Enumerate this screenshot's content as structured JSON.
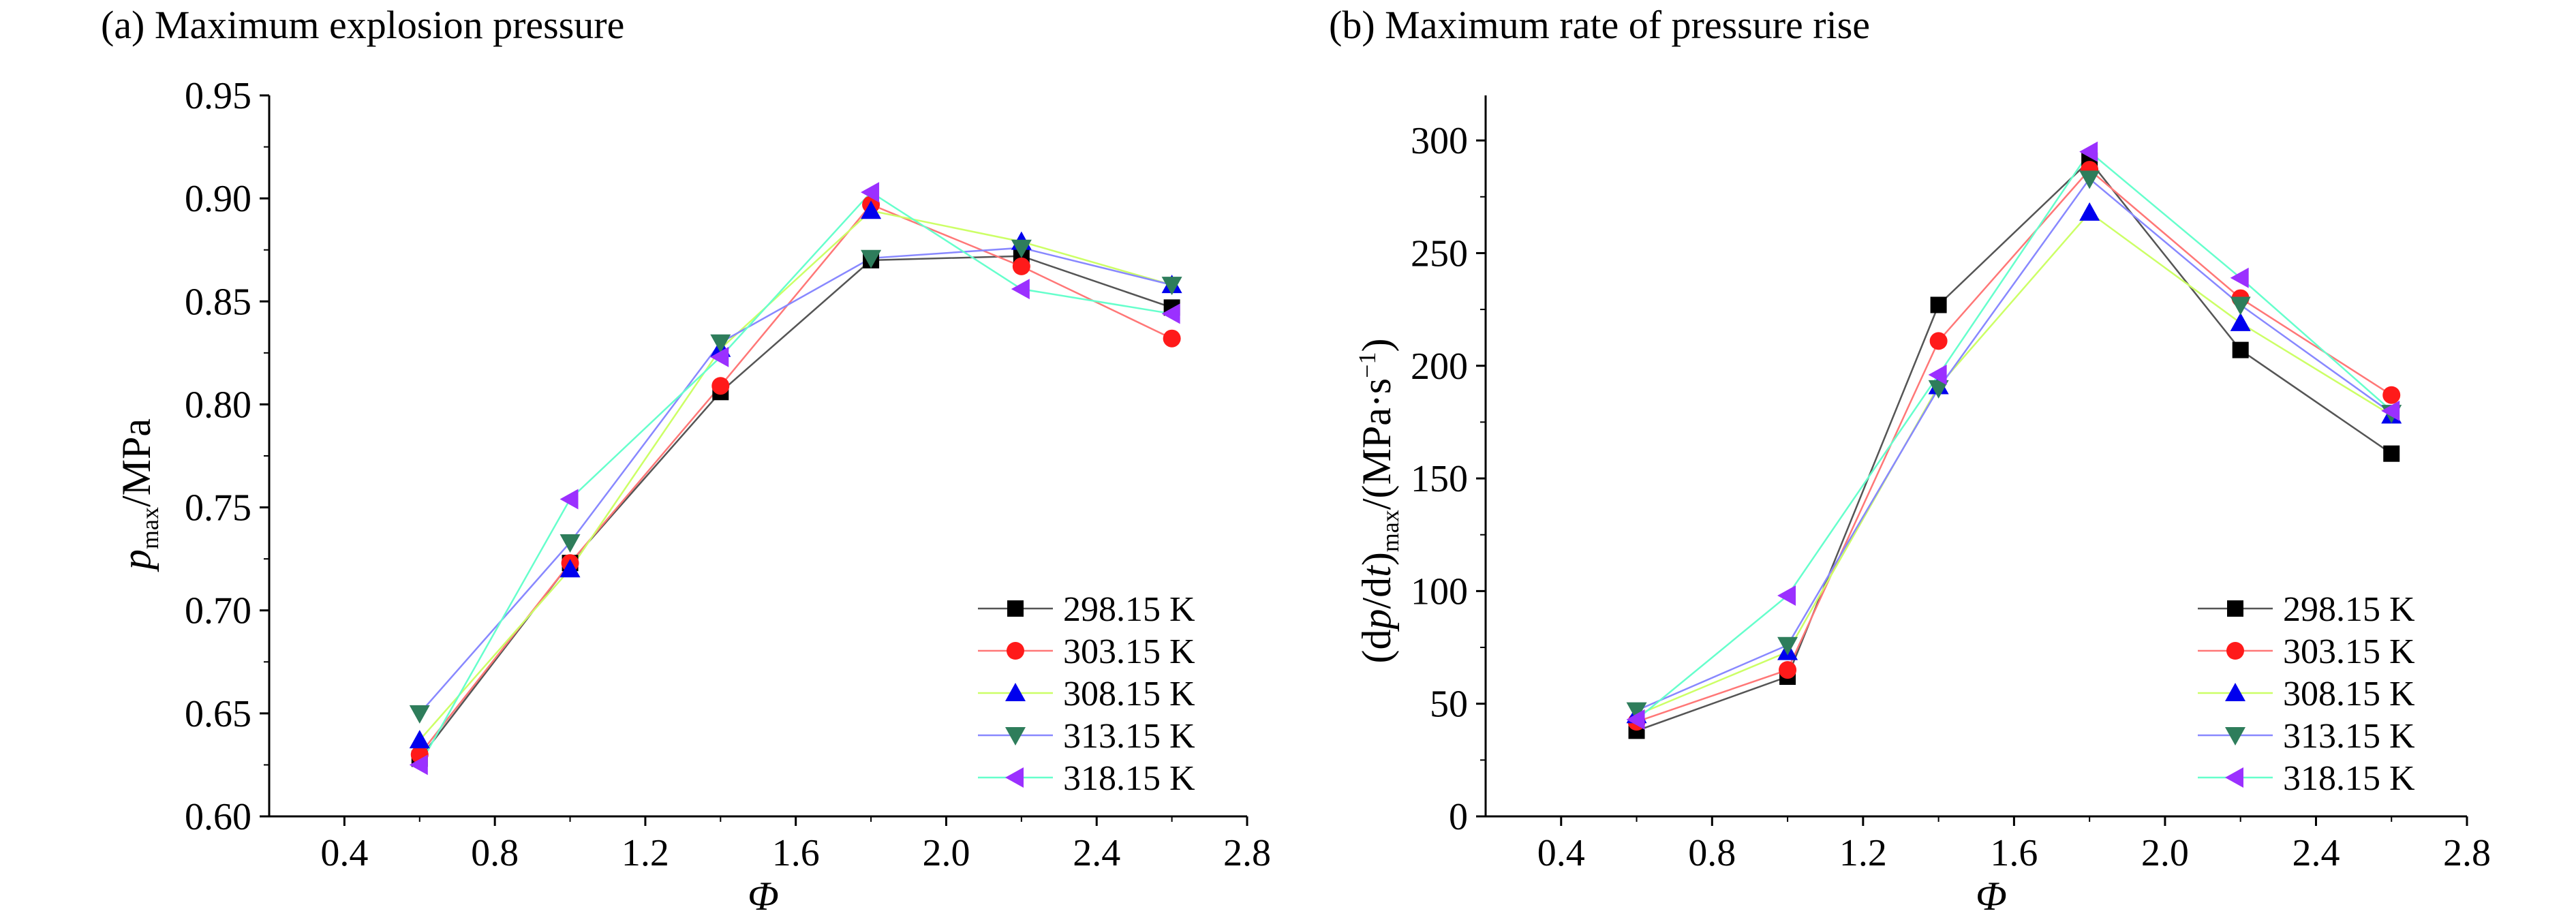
{
  "chart_data": [
    {
      "type": "line",
      "title": "(a) Maximum explosion pressure",
      "xlabel": "Φ",
      "ylabel": {
        "base": "p",
        "sub": "max",
        "tail": "/MPa"
      },
      "xlim": [
        0.2,
        2.8
      ],
      "ylim": [
        0.6,
        0.95
      ],
      "x_ticks": [
        "0.4",
        "0.8",
        "1.2",
        "1.6",
        "2.0",
        "2.4",
        "2.8"
      ],
      "y_ticks": [
        "0.60",
        "0.65",
        "0.70",
        "0.75",
        "0.80",
        "0.85",
        "0.90",
        "0.95"
      ],
      "legend_position": "bottom-right",
      "x": [
        0.6,
        1.0,
        1.4,
        1.8,
        2.2,
        2.6
      ],
      "series": [
        {
          "name": "298.15 K",
          "marker": "square",
          "fill": "#000000",
          "line": "#555555",
          "values": [
            0.628,
            0.723,
            0.806,
            0.87,
            0.872,
            0.847
          ]
        },
        {
          "name": "303.15 K",
          "marker": "circle",
          "fill": "#ff1a1a",
          "line": "#ff7777",
          "values": [
            0.63,
            0.723,
            0.809,
            0.897,
            0.867,
            0.832
          ]
        },
        {
          "name": "308.15 K",
          "marker": "triangle-up",
          "fill": "#0000ee",
          "line": "#ccff66",
          "values": [
            0.637,
            0.72,
            0.827,
            0.894,
            0.879,
            0.858
          ]
        },
        {
          "name": "313.15 K",
          "marker": "triangle-down",
          "fill": "#2e7d5b",
          "line": "#8888ff",
          "values": [
            0.65,
            0.733,
            0.83,
            0.871,
            0.876,
            0.858
          ]
        },
        {
          "name": "318.15 K",
          "marker": "triangle-left",
          "fill": "#9b30ff",
          "line": "#66ffcc",
          "values": [
            0.625,
            0.754,
            0.823,
            0.903,
            0.856,
            0.844
          ]
        }
      ]
    },
    {
      "type": "line",
      "title": "(b) Maximum rate of pressure rise",
      "xlabel": "Φ",
      "ylabel": {
        "open": "(d",
        "p": "p",
        "slash": "/d",
        "t": "t",
        "close": ")",
        "sub": "max",
        "unit": "/(MPa·s",
        "sup": "−1",
        "end": ")"
      },
      "xlim": [
        0.2,
        2.8
      ],
      "ylim": [
        0,
        320
      ],
      "x_ticks": [
        "0.4",
        "0.8",
        "1.2",
        "1.6",
        "2.0",
        "2.4",
        "2.8"
      ],
      "y_ticks": [
        "0",
        "50",
        "100",
        "150",
        "200",
        "250",
        "300"
      ],
      "legend_position": "bottom-right",
      "x": [
        0.6,
        1.0,
        1.4,
        1.8,
        2.2,
        2.6
      ],
      "series": [
        {
          "name": "298.15 K",
          "marker": "square",
          "fill": "#000000",
          "line": "#555555",
          "values": [
            38,
            62,
            227,
            291,
            207,
            161
          ]
        },
        {
          "name": "303.15 K",
          "marker": "circle",
          "fill": "#ff1a1a",
          "line": "#ff7777",
          "values": [
            42,
            65,
            211,
            287,
            230,
            187
          ]
        },
        {
          "name": "308.15 K",
          "marker": "triangle-up",
          "fill": "#0000ee",
          "line": "#ccff66",
          "values": [
            45,
            73,
            191,
            268,
            219,
            178
          ]
        },
        {
          "name": "313.15 K",
          "marker": "triangle-down",
          "fill": "#2e7d5b",
          "line": "#8888ff",
          "values": [
            47,
            76,
            190,
            283,
            227,
            179
          ]
        },
        {
          "name": "318.15 K",
          "marker": "triangle-left",
          "fill": "#9b30ff",
          "line": "#66ffcc",
          "values": [
            43,
            98,
            196,
            295,
            239,
            180
          ]
        }
      ]
    }
  ]
}
